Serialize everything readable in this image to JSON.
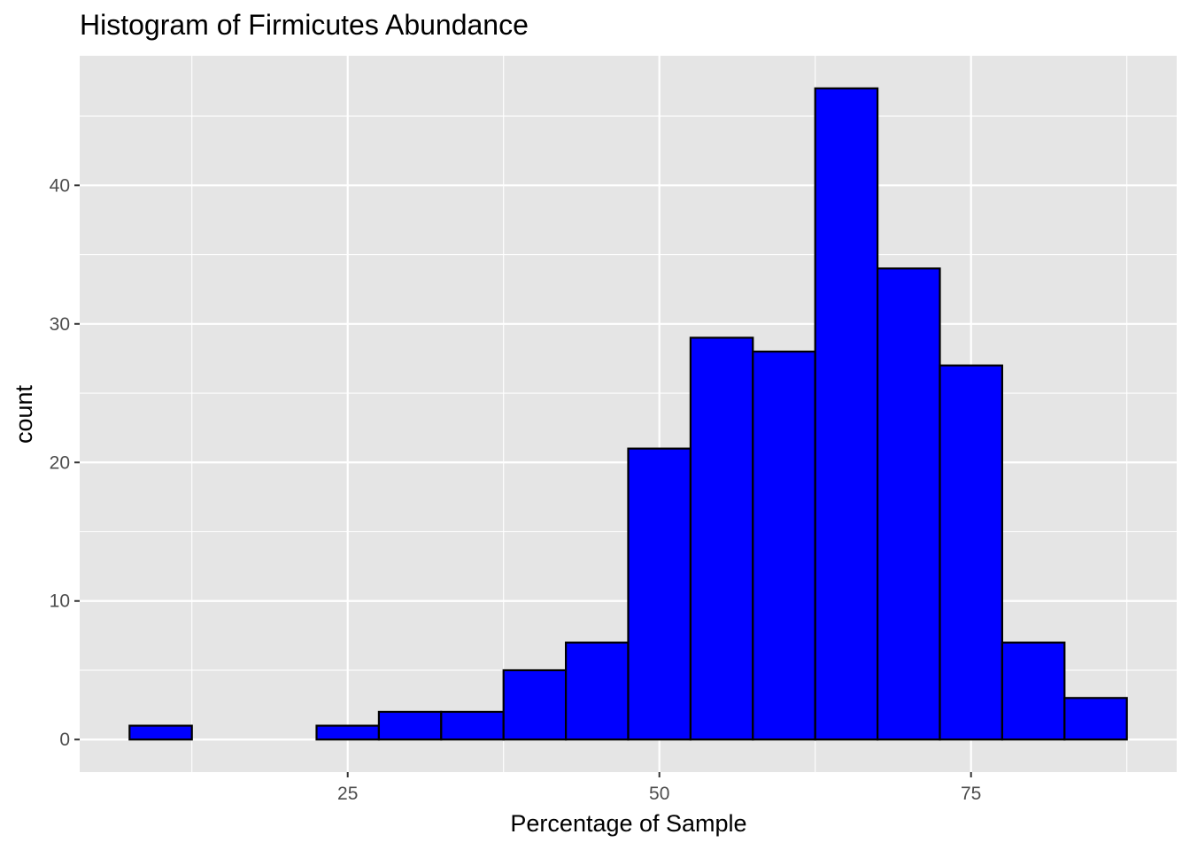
{
  "chart_data": {
    "type": "bar",
    "title": "Histogram of Firmicutes Abundance",
    "xlabel": "Percentage of Sample",
    "ylabel": "count",
    "bin_width": 5,
    "bins": [
      {
        "start": 7.5,
        "end": 12.5,
        "count": 1
      },
      {
        "start": 12.5,
        "end": 17.5,
        "count": 0
      },
      {
        "start": 17.5,
        "end": 22.5,
        "count": 0
      },
      {
        "start": 22.5,
        "end": 27.5,
        "count": 1
      },
      {
        "start": 27.5,
        "end": 32.5,
        "count": 2
      },
      {
        "start": 32.5,
        "end": 37.5,
        "count": 2
      },
      {
        "start": 37.5,
        "end": 42.5,
        "count": 5
      },
      {
        "start": 42.5,
        "end": 47.5,
        "count": 7
      },
      {
        "start": 47.5,
        "end": 52.5,
        "count": 21
      },
      {
        "start": 52.5,
        "end": 57.5,
        "count": 29
      },
      {
        "start": 57.5,
        "end": 62.5,
        "count": 28
      },
      {
        "start": 62.5,
        "end": 67.5,
        "count": 47
      },
      {
        "start": 67.5,
        "end": 72.5,
        "count": 34
      },
      {
        "start": 72.5,
        "end": 77.5,
        "count": 27
      },
      {
        "start": 77.5,
        "end": 82.5,
        "count": 7
      },
      {
        "start": 82.5,
        "end": 87.5,
        "count": 3
      }
    ],
    "xlim": [
      3.5,
      91.5
    ],
    "ylim": [
      -2.35,
      49.35
    ],
    "x_ticks": [
      25,
      50,
      75
    ],
    "x_tick_labels": [
      "25",
      "50",
      "75"
    ],
    "y_ticks": [
      0,
      10,
      20,
      30,
      40
    ],
    "y_tick_labels": [
      "0",
      "10",
      "20",
      "30",
      "40"
    ],
    "grid": true,
    "legend": "none",
    "colors": {
      "bar_fill": "#0000ff",
      "bar_outline": "#000000",
      "panel_background": "#e5e5e5",
      "grid": "#ffffff"
    }
  }
}
